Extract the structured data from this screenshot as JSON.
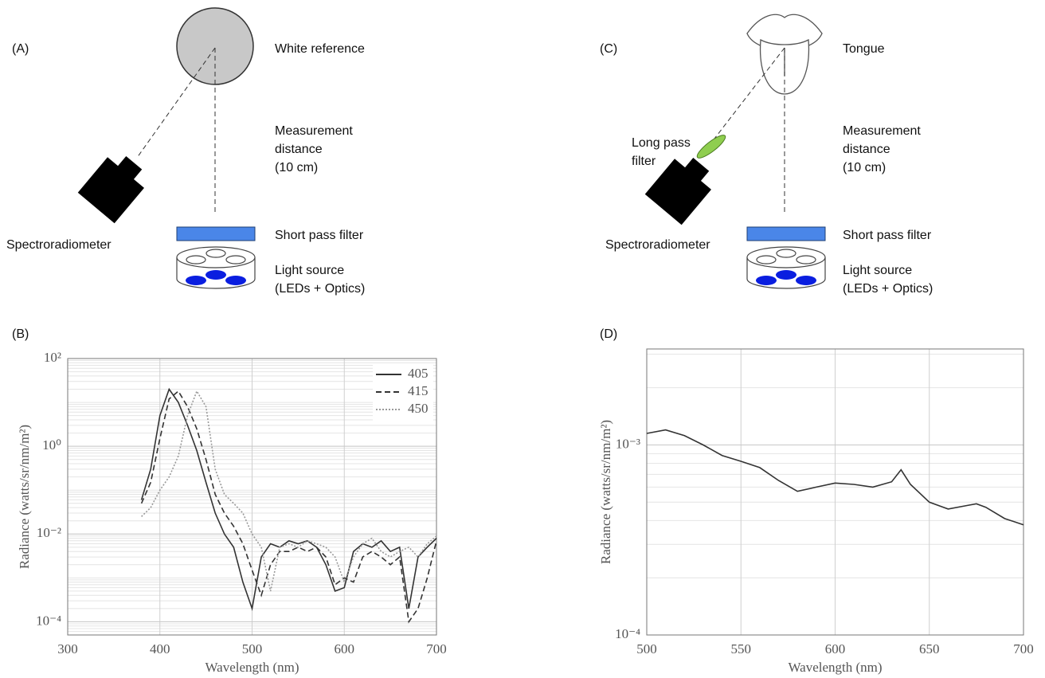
{
  "panel_a": {
    "label": "(A)",
    "white_reference": "White reference",
    "distance": [
      "Measurement",
      "distance",
      "(10 cm)"
    ],
    "spectroradiometer": "Spectroradiometer",
    "short_pass_filter": "Short pass filter",
    "light_source": [
      "Light source",
      "(LEDs + Optics)"
    ]
  },
  "panel_c": {
    "label": "(C)",
    "target": "Tongue",
    "long_pass_filter": [
      "Long pass",
      "filter"
    ],
    "distance": [
      "Measurement",
      "distance",
      "(10 cm)"
    ],
    "spectroradiometer": "Spectroradiometer",
    "short_pass_filter": "Short pass filter",
    "light_source": [
      "Light source",
      "(LEDs + Optics)"
    ]
  },
  "chart_data": [
    {
      "type": "line",
      "label": "(B)",
      "xlabel": "Wavelength (nm)",
      "ylabel": "Radiance (watts/sr/nm/m²)",
      "yscale": "log",
      "grid": true,
      "minor_grid": true,
      "legend": "upper right",
      "xlim": [
        300,
        700
      ],
      "xticks": [
        300,
        400,
        500,
        600,
        700
      ],
      "ylim": [
        5e-05,
        100
      ],
      "yticks": [
        {
          "value": 0.0001,
          "label": "10⁻⁴"
        },
        {
          "value": 0.01,
          "label": "10⁻²"
        },
        {
          "value": 1,
          "label": "10⁰"
        },
        {
          "value": 100,
          "label": "10²"
        }
      ],
      "x": [
        380,
        390,
        400,
        410,
        420,
        430,
        440,
        450,
        460,
        470,
        480,
        490,
        500,
        510,
        520,
        530,
        540,
        550,
        560,
        570,
        580,
        590,
        600,
        610,
        620,
        630,
        640,
        650,
        660,
        670,
        680,
        690,
        700
      ],
      "series": [
        {
          "name": "405",
          "color": "#333333",
          "dash": "solid",
          "values": [
            0.06,
            0.3,
            5,
            20,
            10,
            3,
            0.8,
            0.15,
            0.03,
            0.01,
            0.005,
            0.0008,
            0.0002,
            0.003,
            0.006,
            0.005,
            0.007,
            0.006,
            0.007,
            0.005,
            0.002,
            0.0005,
            0.0006,
            0.004,
            0.006,
            0.005,
            0.007,
            0.004,
            0.005,
            0.0002,
            0.003,
            0.005,
            0.008
          ]
        },
        {
          "name": "415",
          "color": "#333333",
          "dash": "dashed",
          "values": [
            0.05,
            0.15,
            1.5,
            12,
            18,
            8,
            2.5,
            0.5,
            0.08,
            0.03,
            0.015,
            0.006,
            0.0015,
            0.0004,
            0.002,
            0.004,
            0.004,
            0.005,
            0.004,
            0.005,
            0.003,
            0.0007,
            0.001,
            0.0008,
            0.003,
            0.004,
            0.003,
            0.002,
            0.003,
            0.0001,
            0.0002,
            0.001,
            0.007
          ]
        },
        {
          "name": "450",
          "color": "#999999",
          "dash": "dotted",
          "values": [
            0.025,
            0.04,
            0.1,
            0.2,
            0.6,
            5,
            18,
            8,
            0.3,
            0.08,
            0.05,
            0.03,
            0.01,
            0.005,
            0.0005,
            0.005,
            0.006,
            0.005,
            0.007,
            0.006,
            0.005,
            0.003,
            0.0008,
            0.003,
            0.006,
            0.008,
            0.004,
            0.003,
            0.004,
            0.005,
            0.003,
            0.006,
            0.009
          ]
        }
      ]
    },
    {
      "type": "line",
      "label": "(D)",
      "xlabel": "Wavelength (nm)",
      "ylabel": "Radiance (watts/sr/nm/m²)",
      "yscale": "log",
      "grid": true,
      "minor_grid": true,
      "xlim": [
        500,
        700
      ],
      "xticks": [
        500,
        550,
        600,
        650,
        700
      ],
      "ylim": [
        0.0001,
        0.0032
      ],
      "yticks": [
        {
          "value": 0.0001,
          "label": "10⁻⁴"
        },
        {
          "value": 0.001,
          "label": "10⁻³"
        }
      ],
      "x": [
        500,
        510,
        520,
        530,
        540,
        550,
        560,
        570,
        580,
        590,
        600,
        610,
        620,
        630,
        635,
        640,
        650,
        660,
        670,
        675,
        680,
        690,
        700
      ],
      "series": [
        {
          "name": null,
          "color": "#333333",
          "dash": "solid",
          "values": [
            0.00115,
            0.0012,
            0.00112,
            0.001,
            0.00088,
            0.00082,
            0.00076,
            0.00065,
            0.00057,
            0.0006,
            0.00063,
            0.00062,
            0.0006,
            0.00064,
            0.00074,
            0.00062,
            0.0005,
            0.00046,
            0.00048,
            0.00049,
            0.00047,
            0.00041,
            0.00038
          ]
        }
      ]
    }
  ]
}
